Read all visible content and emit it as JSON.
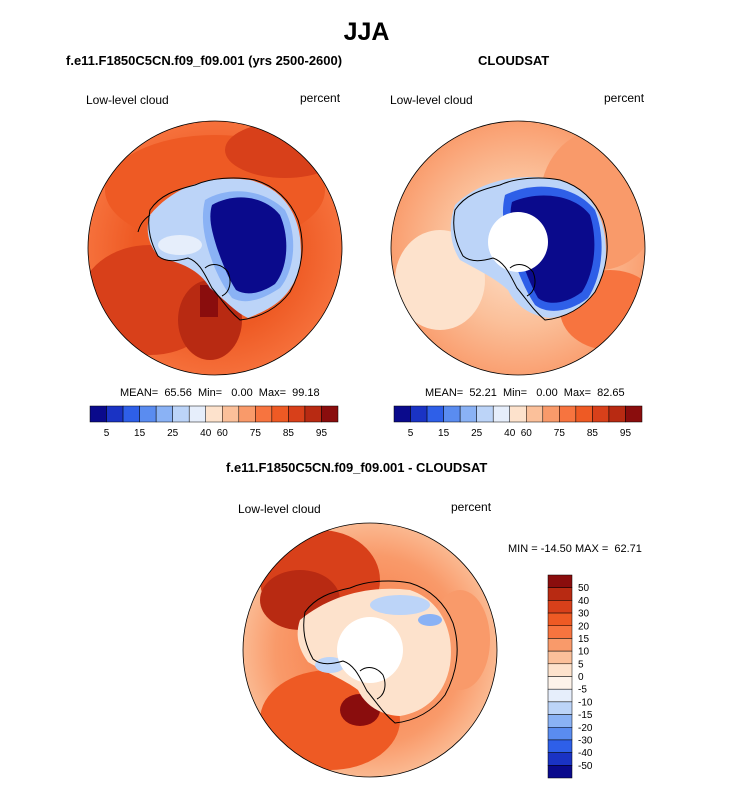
{
  "figure": {
    "title": "JJA"
  },
  "panels": [
    {
      "id": "model",
      "title": "f.e11.F1850C5CN.f09_f09.001 (yrs 2500-2600)",
      "variable": "Low-level cloud",
      "units": "percent",
      "stats": {
        "mean": "65.56",
        "min": "0.00",
        "max": "99.18"
      },
      "stats_text": "MEAN=  65.56  Min=   0.00  Max=  99.18"
    },
    {
      "id": "obs",
      "title": "CLOUDSAT",
      "variable": "Low-level cloud",
      "units": "percent",
      "stats": {
        "mean": "52.21",
        "min": "0.00",
        "max": "82.65"
      },
      "stats_text": "MEAN=  52.21  Min=   0.00  Max=  82.65"
    },
    {
      "id": "diff",
      "title": "f.e11.F1850C5CN.f09_f09.001 - CLOUDSAT",
      "variable": "Low-level cloud",
      "units": "percent",
      "minmax_text": "MIN = -14.50 MAX =  62.71"
    }
  ],
  "colorbar_abs": {
    "colors": [
      "#0a0a8c",
      "#1a33c4",
      "#2e5fe8",
      "#5a8cf0",
      "#8ab2f5",
      "#bcd4f8",
      "#e6eefb",
      "#fde2cc",
      "#fbc09a",
      "#f99a6a",
      "#f7743f",
      "#ee5a24",
      "#d8401a",
      "#b82a12",
      "#8a0d0d"
    ],
    "labels": [
      "5",
      "15",
      "25",
      "40",
      "60",
      "75",
      "85",
      "95"
    ]
  },
  "colorbar_diff": {
    "colors": [
      "#8a0d0d",
      "#b82a12",
      "#d8401a",
      "#ee5a24",
      "#f7743f",
      "#f99a6a",
      "#fbc09a",
      "#fde2cc",
      "#fdf3ea",
      "#e6eefb",
      "#bcd4f8",
      "#8ab2f5",
      "#5a8cf0",
      "#2e5fe8",
      "#1a33c4",
      "#0a0a8c"
    ],
    "labels": [
      "50",
      "40",
      "30",
      "20",
      "15",
      "10",
      "5",
      "0",
      "-5",
      "-10",
      "-15",
      "-20",
      "-30",
      "-40",
      "-50"
    ]
  },
  "colors": {
    "coast": "#000000",
    "hole": "#ffffff"
  }
}
